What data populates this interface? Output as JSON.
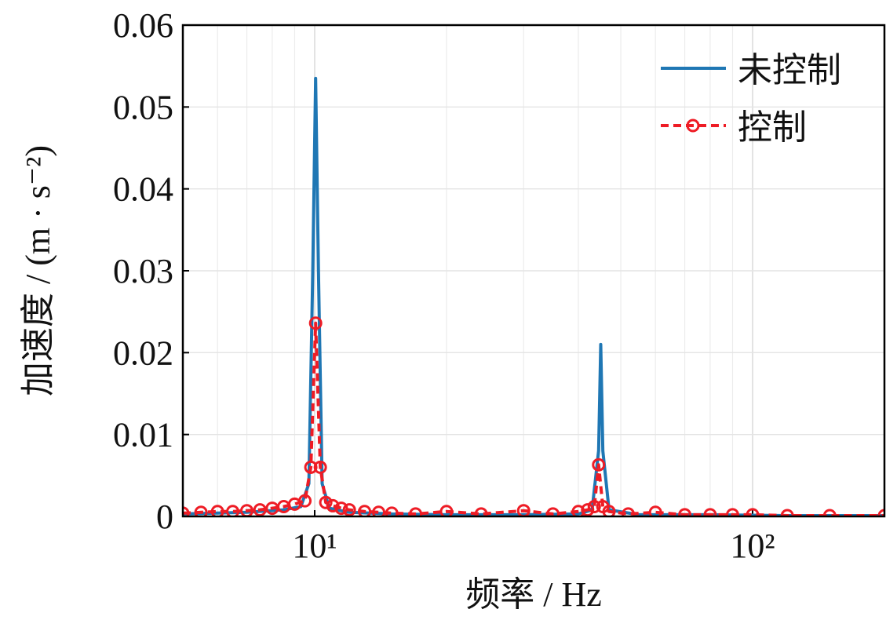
{
  "chart_data": {
    "type": "line",
    "xlabel": "频率 / Hz",
    "ylabel": "加速度 / (m · s⁻²)",
    "x_scale": "log",
    "xlim": [
      5,
      200
    ],
    "ylim": [
      0,
      0.06
    ],
    "x_ticks": [
      {
        "value": 10,
        "label": "10¹"
      },
      {
        "value": 100,
        "label": "10²"
      }
    ],
    "y_ticks": [
      {
        "value": 0,
        "label": "0"
      },
      {
        "value": 0.01,
        "label": "0.01"
      },
      {
        "value": 0.02,
        "label": "0.02"
      },
      {
        "value": 0.03,
        "label": "0.03"
      },
      {
        "value": 0.04,
        "label": "0.04"
      },
      {
        "value": 0.05,
        "label": "0.05"
      },
      {
        "value": 0.06,
        "label": "0.06"
      }
    ],
    "grid": true,
    "legend_position": "top-right",
    "series": [
      {
        "name": "未控制",
        "color": "#1f77b4",
        "style": "solid",
        "x": [
          5,
          7,
          8.5,
          9.3,
          9.7,
          9.9,
          10.05,
          10.2,
          10.4,
          10.8,
          12,
          15,
          20,
          30,
          40,
          43,
          44.5,
          45,
          45.5,
          47,
          55,
          80,
          120,
          200
        ],
        "y": [
          0.0003,
          0.0005,
          0.0008,
          0.0012,
          0.004,
          0.03,
          0.0535,
          0.03,
          0.004,
          0.001,
          0.0005,
          0.0003,
          0.0002,
          0.0002,
          0.0003,
          0.0008,
          0.008,
          0.021,
          0.008,
          0.0008,
          0.0002,
          0.0002,
          0.0001,
          0.0001
        ]
      },
      {
        "name": "控制",
        "color": "#ee1c25",
        "style": "dashed",
        "marker": "circle",
        "x": [
          5,
          5.5,
          6,
          6.5,
          7,
          7.5,
          8,
          8.5,
          9,
          9.5,
          9.8,
          10.05,
          10.3,
          10.6,
          11,
          11.5,
          12,
          13,
          14,
          15,
          17,
          20,
          24,
          30,
          35,
          40,
          42,
          43.5,
          44.5,
          45.5,
          47,
          52,
          60,
          70,
          80,
          90,
          100,
          120,
          150,
          200
        ],
        "y": [
          0.0004,
          0.0005,
          0.0006,
          0.0006,
          0.0007,
          0.0008,
          0.001,
          0.0012,
          0.0015,
          0.0019,
          0.006,
          0.0236,
          0.006,
          0.0017,
          0.0013,
          0.001,
          0.0008,
          0.0006,
          0.0005,
          0.0004,
          0.0003,
          0.0006,
          0.0003,
          0.0007,
          0.0003,
          0.0006,
          0.0008,
          0.0012,
          0.0063,
          0.0012,
          0.0006,
          0.0003,
          0.0005,
          0.0002,
          0.0002,
          0.0002,
          0.0002,
          0.0001,
          0.0001,
          0.0001
        ]
      }
    ]
  }
}
